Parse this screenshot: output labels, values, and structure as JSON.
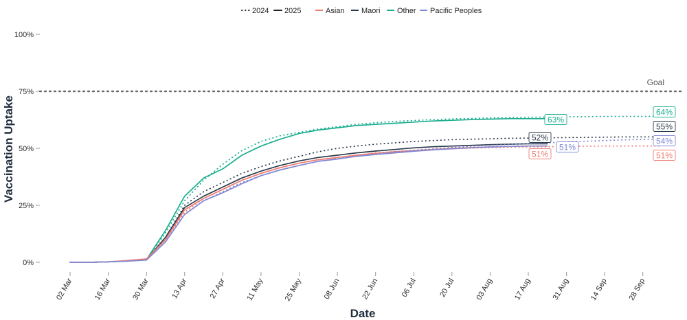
{
  "chart_data": {
    "type": "line",
    "xlabel": "Date",
    "ylabel": "Vaccination Uptake",
    "ylim": [
      0,
      100
    ],
    "y_ticks": [
      "0%",
      "25%",
      "50%",
      "75%",
      "100%"
    ],
    "x_ticks": [
      "02 Mar",
      "16 Mar",
      "30 Mar",
      "13 Apr",
      "27 Apr",
      "11 May",
      "25 May",
      "08 Jun",
      "22 Jun",
      "06 Jul",
      "20 Jul",
      "03 Aug",
      "17 Aug",
      "31 Aug",
      "14 Sep",
      "28 Sep"
    ],
    "grid": false,
    "legend_position": "top",
    "legend": {
      "years": [
        {
          "label": "2024",
          "style": "dotted"
        },
        {
          "label": "2025",
          "style": "solid"
        }
      ],
      "groups": [
        "Asian",
        "Maori",
        "Other",
        "Pacific Peoples"
      ]
    },
    "goal": {
      "label": "Goal",
      "value": 75,
      "color": "#6b6b6b"
    },
    "x_dates": [
      "02 Mar",
      "09 Mar",
      "16 Mar",
      "23 Mar",
      "30 Mar",
      "06 Apr",
      "13 Apr",
      "20 Apr",
      "27 Apr",
      "04 May",
      "11 May",
      "18 May",
      "25 May",
      "01 Jun",
      "08 Jun",
      "15 Jun",
      "22 Jun",
      "29 Jun",
      "06 Jul",
      "13 Jul",
      "20 Jul",
      "27 Jul",
      "03 Aug",
      "10 Aug",
      "17 Aug",
      "24 Aug",
      "31 Aug",
      "07 Sep",
      "14 Sep",
      "21 Sep",
      "28 Sep",
      "05 Oct"
    ],
    "series": [
      {
        "name": "Other",
        "year": "2025",
        "color": "#1aae8f",
        "values": [
          0,
          0,
          0.2,
          0.6,
          1.2,
          14,
          29,
          37,
          41,
          47,
          51,
          54,
          56.5,
          58,
          59,
          60,
          60.5,
          61,
          61.5,
          62,
          62.3,
          62.6,
          62.8,
          63,
          63,
          63
        ]
      },
      {
        "name": "Other",
        "year": "2024",
        "color": "#1aae8f",
        "values": [
          0,
          0,
          0.2,
          0.5,
          1,
          13,
          27,
          36,
          43,
          49,
          53,
          55.5,
          57,
          58.5,
          59.5,
          60.5,
          61.2,
          61.8,
          62.2,
          62.6,
          62.9,
          63.1,
          63.3,
          63.5,
          63.6,
          63.7,
          63.8,
          63.9,
          64,
          64,
          64,
          64
        ]
      },
      {
        "name": "Maori",
        "year": "2025",
        "color": "#2b3a4a",
        "values": [
          0,
          0,
          0.2,
          0.6,
          1.2,
          11,
          24,
          29,
          33,
          37,
          40,
          42.5,
          44.5,
          46,
          47,
          48,
          48.8,
          49.5,
          50.2,
          50.7,
          51,
          51.3,
          51.6,
          51.8,
          52,
          52
        ]
      },
      {
        "name": "Maori",
        "year": "2024",
        "color": "#2b3a4a",
        "values": [
          0,
          0,
          0.2,
          0.5,
          1,
          11,
          25,
          31,
          35,
          39,
          42,
          44.5,
          46.5,
          48.5,
          50,
          51,
          51.8,
          52.4,
          53,
          53.4,
          53.8,
          54,
          54.2,
          54.4,
          54.5,
          54.6,
          54.7,
          54.8,
          54.9,
          55,
          55,
          55
        ]
      },
      {
        "name": "Asian",
        "year": "2025",
        "color": "#f07b6f",
        "values": [
          0,
          0,
          0.2,
          0.8,
          1.5,
          10,
          23,
          28,
          32,
          36,
          39,
          41.5,
          43.5,
          45,
          46,
          47,
          47.8,
          48.5,
          49,
          49.5,
          50,
          50.3,
          50.6,
          50.8,
          51,
          51
        ]
      },
      {
        "name": "Asian",
        "year": "2024",
        "color": "#f07b6f",
        "values": [
          0,
          0,
          0.2,
          0.6,
          1.2,
          10,
          22,
          28,
          32,
          36,
          39,
          41.5,
          43.5,
          45,
          46,
          47,
          48,
          48.6,
          49,
          49.5,
          49.8,
          50.1,
          50.3,
          50.5,
          50.6,
          50.7,
          50.8,
          50.9,
          51,
          51,
          51,
          51
        ]
      },
      {
        "name": "Pacific Peoples",
        "year": "2025",
        "color": "#8088d4",
        "values": [
          0,
          0,
          0.2,
          0.5,
          1,
          9,
          21,
          27,
          30.5,
          34.5,
          38,
          40.5,
          42.5,
          44.3,
          45.3,
          46.5,
          47.3,
          48,
          48.7,
          49.3,
          49.8,
          50.2,
          50.6,
          50.8,
          51,
          51
        ]
      },
      {
        "name": "Pacific Peoples",
        "year": "2024",
        "color": "#8088d4",
        "values": [
          0,
          0,
          0.2,
          0.5,
          1,
          9,
          21,
          27,
          31,
          35,
          38,
          40.5,
          42.5,
          44.3,
          45.5,
          46.5,
          47.5,
          48.5,
          49.2,
          49.8,
          50.4,
          50.9,
          51.3,
          51.7,
          52.1,
          52.4,
          52.8,
          53.1,
          53.4,
          53.7,
          53.9,
          54
        ]
      }
    ],
    "end_labels": [
      {
        "text": "63%",
        "series": "Other",
        "year": "2025",
        "value": 63,
        "color": "#1aae8f"
      },
      {
        "text": "52%",
        "series": "Maori",
        "year": "2025",
        "value": 52,
        "color": "#2b3a4a"
      },
      {
        "text": "51%",
        "series": "Pacific Peoples",
        "year": "2025",
        "value": 51,
        "color": "#8088d4"
      },
      {
        "text": "51%",
        "series": "Asian",
        "year": "2025",
        "value": 51,
        "color": "#f07b6f"
      },
      {
        "text": "64%",
        "series": "Other",
        "year": "2024",
        "value": 64,
        "color": "#1aae8f"
      },
      {
        "text": "55%",
        "series": "Maori",
        "year": "2024",
        "value": 55,
        "color": "#2b3a4a"
      },
      {
        "text": "54%",
        "series": "Pacific Peoples",
        "year": "2024",
        "value": 54,
        "color": "#8088d4"
      },
      {
        "text": "51%",
        "series": "Asian",
        "year": "2024",
        "value": 51,
        "color": "#f07b6f"
      }
    ]
  }
}
